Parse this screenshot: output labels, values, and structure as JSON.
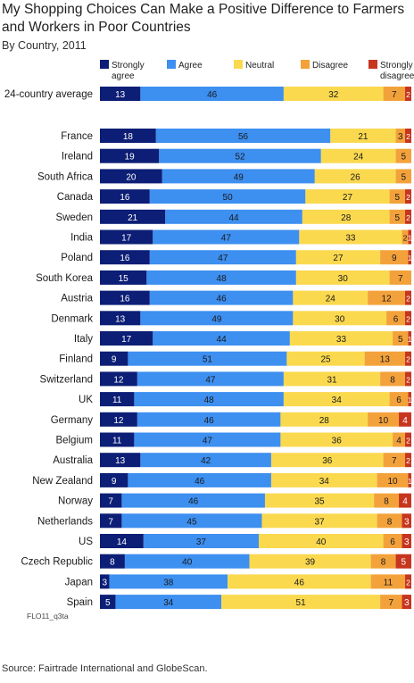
{
  "chart_data": {
    "type": "bar",
    "orientation": "horizontal",
    "stacked": true,
    "title": "My Shopping Choices Can Make a Positive Difference to Farmers and Workers in Poor Countries",
    "subtitle": "By Country, 2011",
    "xlim": [
      0,
      100
    ],
    "legend_position": "top",
    "categories": [
      "24-country average",
      "France",
      "Ireland",
      "South Africa",
      "Canada",
      "Sweden",
      "India",
      "Poland",
      "South Korea",
      "Austria",
      "Denmark",
      "Italy",
      "Finland",
      "Switzerland",
      "UK",
      "Germany",
      "Belgium",
      "Australia",
      "New Zealand",
      "Norway",
      "Netherlands",
      "US",
      "Czech Republic",
      "Japan",
      "Spain"
    ],
    "series": [
      {
        "name": "Strongly agree",
        "color": "#0c1e75",
        "label_color": "#ffffff",
        "values": [
          13,
          18,
          19,
          20,
          16,
          21,
          17,
          16,
          15,
          16,
          13,
          17,
          9,
          12,
          11,
          12,
          11,
          13,
          9,
          7,
          7,
          14,
          8,
          3,
          5
        ]
      },
      {
        "name": "Agree",
        "color": "#3d8ff0",
        "label_color": "#1a1a1a",
        "values": [
          46,
          56,
          52,
          49,
          50,
          44,
          47,
          47,
          48,
          46,
          49,
          44,
          51,
          47,
          48,
          46,
          47,
          42,
          46,
          46,
          45,
          37,
          40,
          38,
          34
        ]
      },
      {
        "name": "Neutral",
        "color": "#fbd94f",
        "label_color": "#1a1a1a",
        "values": [
          32,
          21,
          24,
          26,
          27,
          28,
          33,
          27,
          30,
          24,
          30,
          33,
          25,
          31,
          34,
          28,
          36,
          36,
          34,
          35,
          37,
          40,
          39,
          46,
          51
        ]
      },
      {
        "name": "Disagree",
        "color": "#f3a23b",
        "label_color": "#1a1a1a",
        "values": [
          7,
          3,
          5,
          5,
          5,
          5,
          2,
          9,
          7,
          12,
          6,
          5,
          13,
          8,
          6,
          10,
          4,
          7,
          10,
          8,
          8,
          6,
          8,
          11,
          7
        ]
      },
      {
        "name": "Strongly disagree",
        "color": "#c7351f",
        "label_color": "#ffffff",
        "values": [
          2,
          2,
          null,
          null,
          2,
          2,
          1,
          1,
          null,
          2,
          2,
          1,
          2,
          2,
          1,
          4,
          2,
          2,
          1,
          4,
          3,
          3,
          5,
          2,
          3
        ]
      }
    ]
  },
  "code_note": "FLO11_q3ta",
  "source": "Source: Fairtrade International and GlobeScan."
}
